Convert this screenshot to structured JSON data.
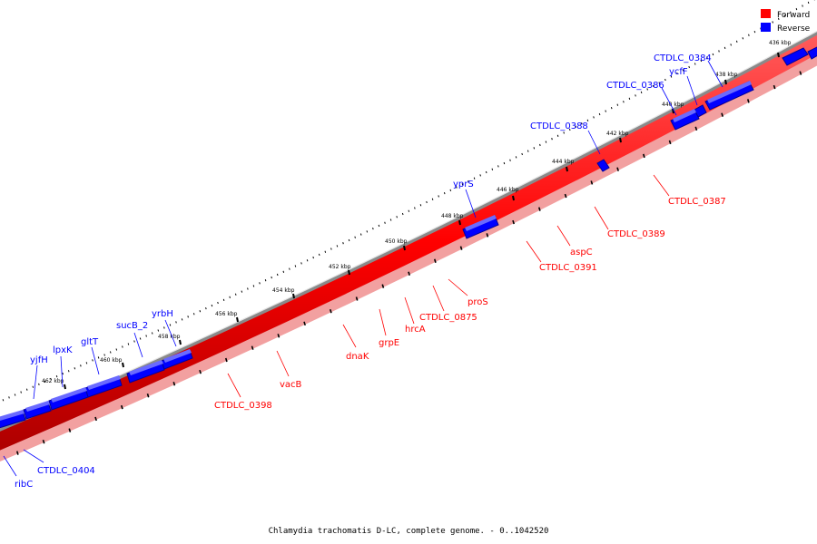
{
  "legend": {
    "items": [
      {
        "label": "Forward",
        "color": "#ff0000"
      },
      {
        "label": "Reverse",
        "color": "#0000ff"
      }
    ]
  },
  "caption": "Chlamydia trachomatis D-LC, complete genome. - 0..1042520",
  "colors": {
    "forward": "#ff0000",
    "forward_dark": "#b00000",
    "reverse": "#0000ff",
    "reverse_dark": "#00009a",
    "backbone": "#8a8a8a"
  },
  "ticks": [
    {
      "label": "436 kbp"
    },
    {
      "label": "438 kbp"
    },
    {
      "label": "440 kbp"
    },
    {
      "label": "442 kbp"
    },
    {
      "label": "444 kbp"
    },
    {
      "label": "446 kbp"
    },
    {
      "label": "448 kbp"
    },
    {
      "label": "450 kbp"
    },
    {
      "label": "452 kbp"
    },
    {
      "label": "454 kbp"
    },
    {
      "label": "456 kbp"
    },
    {
      "label": "458 kbp"
    },
    {
      "label": "460 kbp"
    },
    {
      "label": "462 kbp"
    }
  ],
  "reverse_genes": [
    {
      "label": "CTDLC_0384"
    },
    {
      "label": "ycfF"
    },
    {
      "label": "CTDLC_0386"
    },
    {
      "label": "CTDLC_0388"
    },
    {
      "label": "yprS"
    },
    {
      "label": "yrbH"
    },
    {
      "label": "sucB_2"
    },
    {
      "label": "gltT"
    },
    {
      "label": "lpxK"
    },
    {
      "label": "yjfH"
    },
    {
      "label": "CTDLC_0404"
    },
    {
      "label": "ribC"
    }
  ],
  "forward_genes": [
    {
      "label": "CTDLC_0387"
    },
    {
      "label": "CTDLC_0389"
    },
    {
      "label": "aspC"
    },
    {
      "label": "CTDLC_0391"
    },
    {
      "label": "proS"
    },
    {
      "label": "CTDLC_0875"
    },
    {
      "label": "hrcA"
    },
    {
      "label": "grpE"
    },
    {
      "label": "dnaK"
    },
    {
      "label": "vacB"
    },
    {
      "label": "CTDLC_0398"
    }
  ]
}
